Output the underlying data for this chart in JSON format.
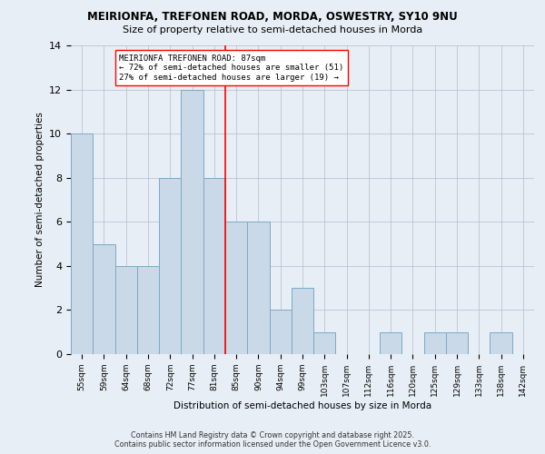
{
  "title_line1": "MEIRIONFA, TREFONEN ROAD, MORDA, OSWESTRY, SY10 9NU",
  "title_line2": "Size of property relative to semi-detached houses in Morda",
  "xlabel": "Distribution of semi-detached houses by size in Morda",
  "ylabel": "Number of semi-detached properties",
  "categories": [
    "55sqm",
    "59sqm",
    "64sqm",
    "68sqm",
    "72sqm",
    "77sqm",
    "81sqm",
    "85sqm",
    "90sqm",
    "94sqm",
    "99sqm",
    "103sqm",
    "107sqm",
    "112sqm",
    "116sqm",
    "120sqm",
    "125sqm",
    "129sqm",
    "133sqm",
    "138sqm",
    "142sqm"
  ],
  "values": [
    10,
    5,
    4,
    4,
    8,
    12,
    8,
    6,
    6,
    2,
    3,
    1,
    0,
    0,
    1,
    0,
    1,
    1,
    0,
    1,
    0
  ],
  "bar_color": "#c9d9e8",
  "bar_edge_color": "#7aaac8",
  "ylim": [
    0,
    14
  ],
  "yticks": [
    0,
    2,
    4,
    6,
    8,
    10,
    12,
    14
  ],
  "property_line_index": 7,
  "property_line_color": "red",
  "annotation_title": "MEIRIONFA TREFONEN ROAD: 87sqm",
  "annotation_line1": "← 72% of semi-detached houses are smaller (51)",
  "annotation_line2": "27% of semi-detached houses are larger (19) →",
  "footer_line1": "Contains HM Land Registry data © Crown copyright and database right 2025.",
  "footer_line2": "Contains public sector information licensed under the Open Government Licence v3.0.",
  "background_color": "#e8eef5"
}
